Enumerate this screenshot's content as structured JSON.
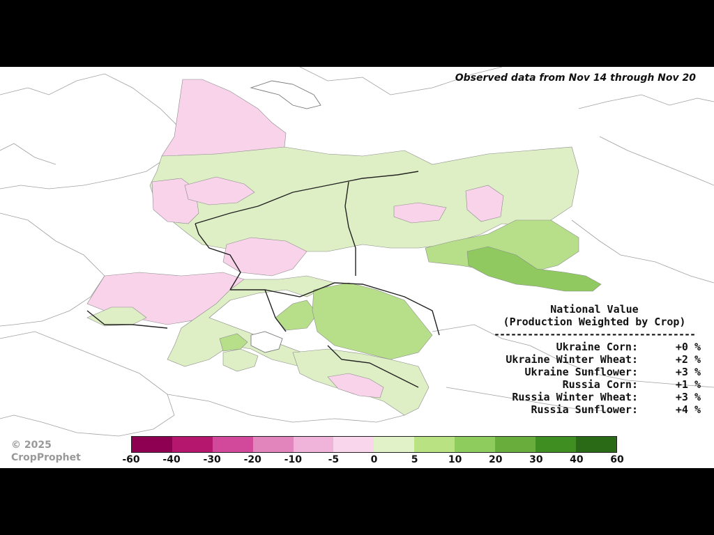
{
  "observed_caption": "Observed data from Nov 14 through Nov 20",
  "national": {
    "title": "National Value",
    "subtitle": "(Production Weighted by Crop)",
    "divider": "------------------------------------",
    "rows": [
      {
        "label": "Ukraine Corn:",
        "value": "+0 %"
      },
      {
        "label": "Ukraine Winter Wheat:",
        "value": "+2 %"
      },
      {
        "label": "Ukraine Sunflower:",
        "value": "+3 %"
      },
      {
        "label": "Russia Corn:",
        "value": "+1 %"
      },
      {
        "label": "Russia Winter Wheat:",
        "value": "+3 %"
      },
      {
        "label": "Russia Sunflower:",
        "value": "+4 %"
      }
    ]
  },
  "copyright": {
    "line1": "© 2025",
    "line2": "CropProphet"
  },
  "colorbar": {
    "ticks": [
      "-60",
      "-40",
      "-30",
      "-20",
      "-10",
      "-5",
      "0",
      "5",
      "10",
      "20",
      "30",
      "40",
      "60"
    ],
    "colors": [
      "#8e0152",
      "#b5166e",
      "#d2489b",
      "#e385bd",
      "#f0b3d9",
      "#fad6ec",
      "#e1f2c8",
      "#b9e283",
      "#8fcc5e",
      "#69ae3c",
      "#3f8e22",
      "#2a6a17"
    ]
  },
  "map_colors": {
    "water": "#ffffff",
    "land_outline": "#9a9a9a",
    "border": "#222222",
    "neg_light": "#f8d3ea",
    "pos_light": "#deefc5",
    "pos_mid": "#b7df8a",
    "pos_strong": "#8fc960"
  }
}
